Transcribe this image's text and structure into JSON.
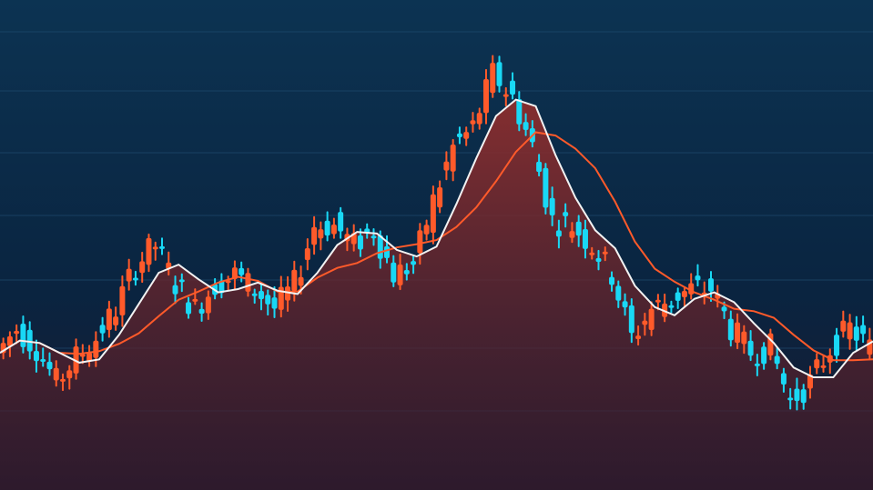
{
  "chart_data": {
    "type": "candlestick",
    "title": "",
    "xlabel": "",
    "ylabel": "",
    "ylim": [
      0,
      100
    ],
    "grid": true,
    "closes": [
      28,
      33,
      29,
      22,
      27,
      31,
      37,
      46,
      50,
      42,
      37,
      42,
      44,
      41,
      37,
      42,
      54,
      54,
      50,
      53,
      44,
      46,
      59,
      70,
      74,
      85,
      80,
      70,
      55,
      54,
      50,
      44,
      31,
      37,
      39,
      41,
      41,
      33,
      28,
      29,
      18,
      22,
      29,
      33,
      29
    ],
    "overlays": [
      "moving-average-fast",
      "moving-average-slow"
    ],
    "colors": {
      "up": "#ff5a2a",
      "down": "#19d8f5",
      "fast_ma": "#f2f2f2",
      "slow_ma": "#ff5a2a",
      "background_top": "#0c3352",
      "background_bottom": "#1a1a30",
      "area_fill": "#8a2a2a",
      "grid": "#1e4a6e"
    }
  }
}
